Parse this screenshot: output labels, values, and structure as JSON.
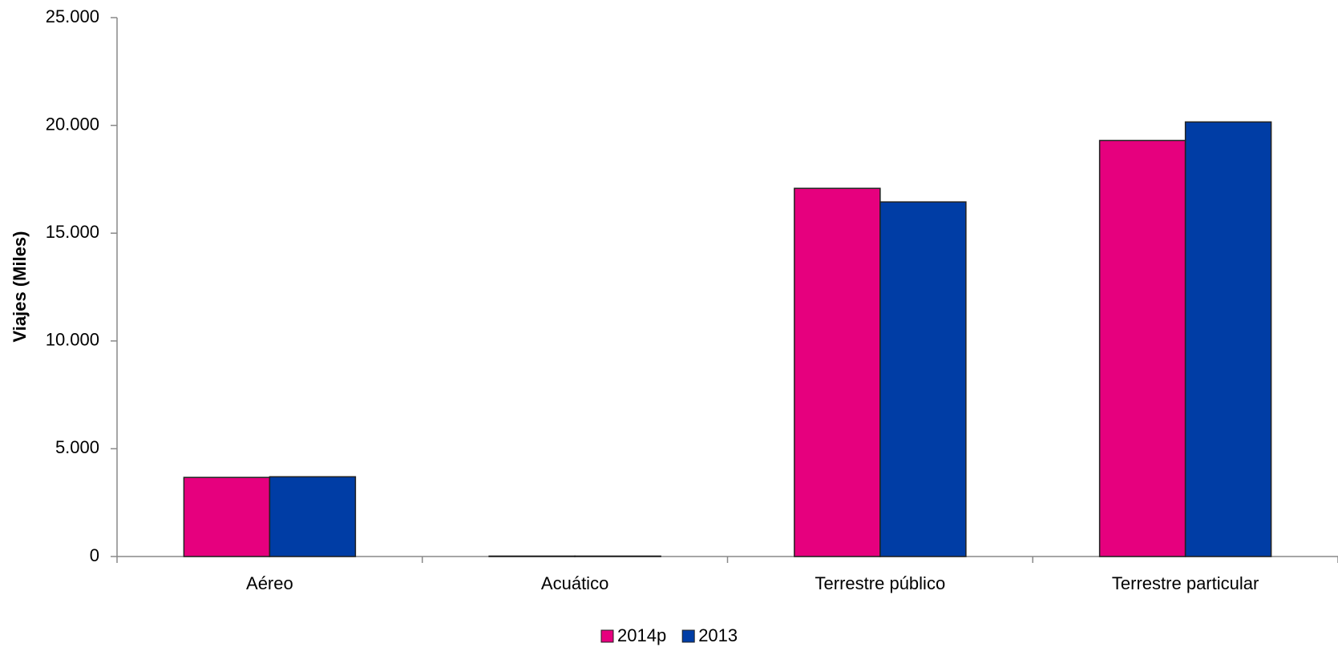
{
  "chart_data": {
    "type": "bar",
    "y_label": "Viajes (Miles)",
    "categories": [
      "Aéreo",
      "Acuático",
      "Terrestre público",
      "Terrestre particular"
    ],
    "series": [
      {
        "name": "2014p",
        "color": "#e6007e",
        "values": [
          3670,
          20,
          17080,
          19300
        ]
      },
      {
        "name": "2013",
        "color": "#003da5",
        "values": [
          3700,
          20,
          16450,
          20160
        ]
      }
    ],
    "ylim": [
      0,
      25000
    ],
    "yticks": [
      0,
      {
        "value": 5000,
        "label": "5.000"
      },
      {
        "value": 10000,
        "label": "10.000"
      },
      {
        "value": 15000,
        "label": "15.000"
      },
      {
        "value": 20000,
        "label": "20.000"
      },
      {
        "value": 25000,
        "label": "25.000"
      }
    ],
    "grid": false
  }
}
